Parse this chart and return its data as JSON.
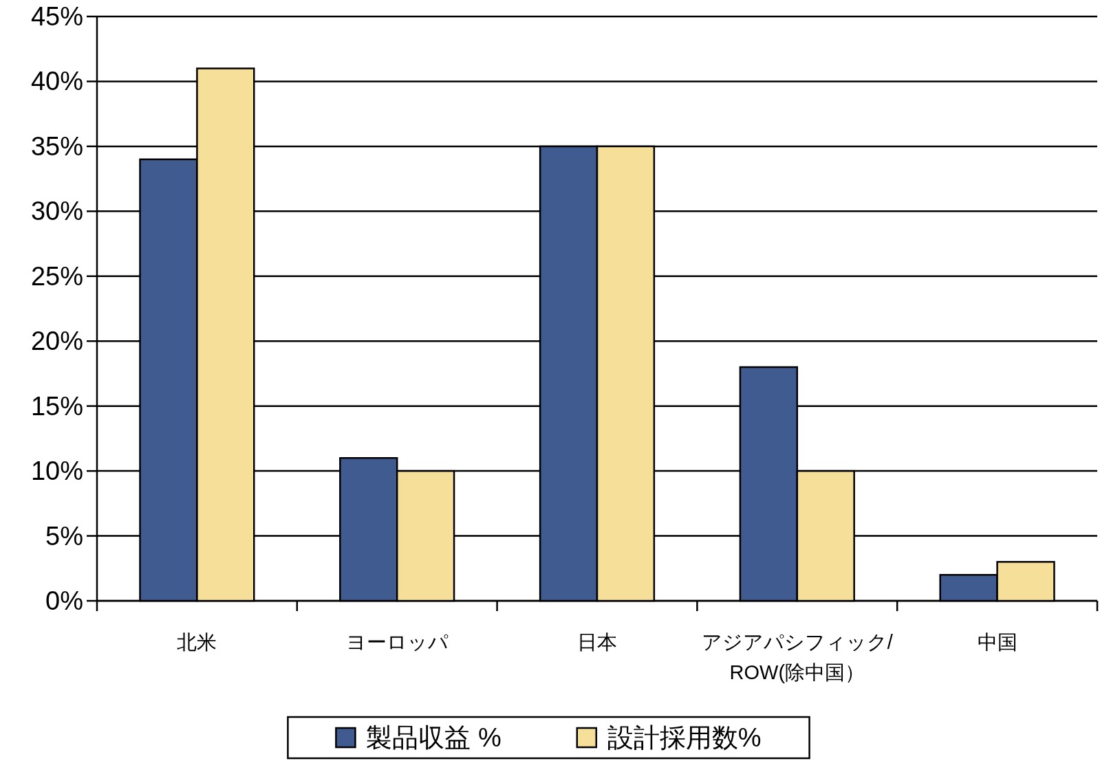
{
  "chart_data": {
    "type": "bar",
    "categories": [
      "北米",
      "ヨーロッパ",
      "日本",
      "アジアパシフィック/ROW(除中国）",
      "中国"
    ],
    "series": [
      {
        "name": "製品収益 %",
        "color": "#3f5b8f",
        "values": [
          34,
          11,
          35,
          18,
          2
        ]
      },
      {
        "name": "設計採用数%",
        "color": "#f5df99",
        "values": [
          41,
          10,
          35,
          10,
          3
        ]
      }
    ],
    "ylim": [
      0,
      45
    ],
    "yticks": [
      {
        "value": 0,
        "label": "0%"
      },
      {
        "value": 5,
        "label": "5%"
      },
      {
        "value": 10,
        "label": "10%"
      },
      {
        "value": 15,
        "label": "15%"
      },
      {
        "value": 20,
        "label": "20%"
      },
      {
        "value": 25,
        "label": "25%"
      },
      {
        "value": 30,
        "label": "30%"
      },
      {
        "value": 35,
        "label": "35%"
      },
      {
        "value": 40,
        "label": "40%"
      },
      {
        "value": 45,
        "label": "45%"
      }
    ],
    "grid": "y",
    "legend": "bottom"
  }
}
